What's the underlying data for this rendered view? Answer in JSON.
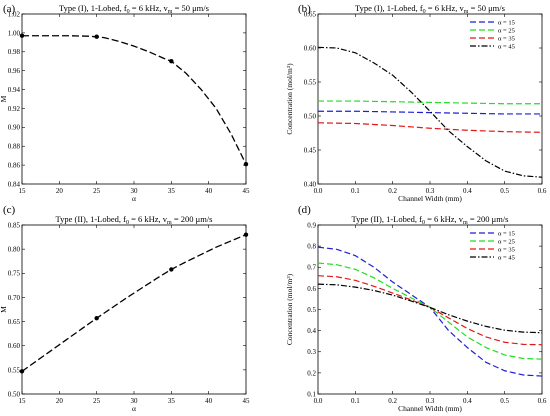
{
  "colors": {
    "blue": "#1f1fd6",
    "green": "#22dd22",
    "red": "#e01818",
    "black": "#000000"
  },
  "chart_data": [
    {
      "id": "a",
      "panel_label": "(a)",
      "type": "line",
      "title": "Type (I), 1-Lobed, f_0 = 6 kHz, v_m = 50 μm/s",
      "title_parts": {
        "main": "Type (I), 1-Lobed, f",
        "sub1": "0",
        "mid": " = 6 kHz, v",
        "sub2": "m",
        "end": " = 50 μm/s"
      },
      "xlabel": "α",
      "ylabel": "M",
      "xlim": [
        15,
        45
      ],
      "ylim": [
        0.84,
        1.02
      ],
      "xticks": [
        15,
        20,
        25,
        30,
        35,
        40,
        45
      ],
      "yticks": [
        "0.84",
        "0.86",
        "0.88",
        "0.90",
        "0.92",
        "0.94",
        "0.96",
        "0.98",
        "1.00",
        "1.02"
      ],
      "points": [
        {
          "x": 15,
          "y": 0.997
        },
        {
          "x": 25,
          "y": 0.996
        },
        {
          "x": 35,
          "y": 0.97
        },
        {
          "x": 45,
          "y": 0.861
        }
      ],
      "curve": [
        [
          15,
          0.997
        ],
        [
          18,
          0.997
        ],
        [
          21,
          0.997
        ],
        [
          24,
          0.9965
        ],
        [
          26,
          0.995
        ],
        [
          28,
          0.991
        ],
        [
          30,
          0.986
        ],
        [
          32,
          0.98
        ],
        [
          34,
          0.973
        ],
        [
          35,
          0.97
        ],
        [
          37,
          0.957
        ],
        [
          39,
          0.94
        ],
        [
          41,
          0.92
        ],
        [
          43,
          0.893
        ],
        [
          45,
          0.861
        ]
      ]
    },
    {
      "id": "b",
      "panel_label": "(b)",
      "type": "line",
      "title": "Type (I), 1-Lobed, f_0 = 6 kHz, v_m = 50 μm/s",
      "title_parts": {
        "main": "Type (I), 1-Lobed, f",
        "sub1": "0",
        "mid": " = 6 kHz, v",
        "sub2": "m",
        "end": " = 50 μm/s"
      },
      "xlabel": "Channel Width (mm)",
      "ylabel": "Concentration (mol/m³)",
      "xlim": [
        0,
        0.6
      ],
      "ylim": [
        0.4,
        0.65
      ],
      "xticks": [
        "0.0",
        "0.1",
        "0.2",
        "0.3",
        "0.4",
        "0.5",
        "0.6"
      ],
      "yticks": [
        "0.40",
        "0.45",
        "0.50",
        "0.55",
        "0.60",
        "0.65"
      ],
      "legend_position": "top-right",
      "series": [
        {
          "name": "α = 15",
          "color": "blue",
          "dash": "6,3",
          "x": [
            0,
            0.1,
            0.2,
            0.3,
            0.4,
            0.5,
            0.6
          ],
          "values": [
            0.507,
            0.507,
            0.506,
            0.505,
            0.504,
            0.503,
            0.503
          ]
        },
        {
          "name": "α = 25",
          "color": "green",
          "dash": "6,3",
          "x": [
            0,
            0.1,
            0.2,
            0.3,
            0.4,
            0.5,
            0.6
          ],
          "values": [
            0.522,
            0.522,
            0.521,
            0.52,
            0.519,
            0.518,
            0.518
          ]
        },
        {
          "name": "α = 35",
          "color": "red",
          "dash": "6,3",
          "x": [
            0,
            0.1,
            0.2,
            0.3,
            0.4,
            0.5,
            0.6
          ],
          "values": [
            0.49,
            0.489,
            0.486,
            0.482,
            0.479,
            0.477,
            0.476
          ]
        },
        {
          "name": "α = 45",
          "color": "black",
          "dash": "6,2,1.5,2",
          "x": [
            0,
            0.05,
            0.1,
            0.15,
            0.2,
            0.25,
            0.3,
            0.35,
            0.4,
            0.45,
            0.5,
            0.55,
            0.6
          ],
          "values": [
            0.601,
            0.6,
            0.593,
            0.578,
            0.56,
            0.535,
            0.507,
            0.478,
            0.455,
            0.434,
            0.419,
            0.412,
            0.41
          ]
        }
      ]
    },
    {
      "id": "c",
      "panel_label": "(c)",
      "type": "line",
      "title": "Type (II), 1-Lobed, f_0 = 6 kHz, v_m = 200 μm/s",
      "title_parts": {
        "main": "Type (II), 1-Lobed, f",
        "sub1": "0",
        "mid": " = 6 kHz, v",
        "sub2": "m",
        "end": " = 200 μm/s"
      },
      "xlabel": "α",
      "ylabel": "M",
      "xlim": [
        15,
        45
      ],
      "ylim": [
        0.5,
        0.85
      ],
      "xticks": [
        15,
        20,
        25,
        30,
        35,
        40,
        45
      ],
      "yticks": [
        "0.50",
        "0.55",
        "0.60",
        "0.65",
        "0.70",
        "0.75",
        "0.80",
        "0.85"
      ],
      "points": [
        {
          "x": 15,
          "y": 0.547
        },
        {
          "x": 25,
          "y": 0.657
        },
        {
          "x": 35,
          "y": 0.758
        },
        {
          "x": 45,
          "y": 0.83
        }
      ],
      "curve": [
        [
          15,
          0.547
        ],
        [
          17,
          0.569
        ],
        [
          19,
          0.591
        ],
        [
          21,
          0.613
        ],
        [
          23,
          0.635
        ],
        [
          25,
          0.657
        ],
        [
          27,
          0.678
        ],
        [
          29,
          0.699
        ],
        [
          31,
          0.719
        ],
        [
          33,
          0.739
        ],
        [
          35,
          0.758
        ],
        [
          37,
          0.774
        ],
        [
          39,
          0.789
        ],
        [
          41,
          0.804
        ],
        [
          43,
          0.817
        ],
        [
          45,
          0.83
        ]
      ]
    },
    {
      "id": "d",
      "panel_label": "(d)",
      "type": "line",
      "title": "Type (II), 1-Lobed, f_0 = 6 kHz, v_m = 200 μm/s",
      "title_parts": {
        "main": "Type (II), 1-Lobed, f",
        "sub1": "0",
        "mid": " = 6 kHz, v",
        "sub2": "m",
        "end": " = 200 μm/s"
      },
      "xlabel": "Channel Width (mm)",
      "ylabel": "Concentration (mol/m³)",
      "xlim": [
        0,
        0.6
      ],
      "ylim": [
        0.1,
        0.9
      ],
      "xticks": [
        "0.0",
        "0.1",
        "0.2",
        "0.3",
        "0.4",
        "0.5",
        "0.6"
      ],
      "yticks": [
        "0.1",
        "0.2",
        "0.3",
        "0.4",
        "0.5",
        "0.6",
        "0.7",
        "0.8",
        "0.9"
      ],
      "legend_position": "top-right",
      "series": [
        {
          "name": "α = 15",
          "color": "blue",
          "dash": "6,3",
          "x": [
            0,
            0.05,
            0.1,
            0.15,
            0.2,
            0.25,
            0.3,
            0.35,
            0.4,
            0.45,
            0.5,
            0.55,
            0.6
          ],
          "values": [
            0.795,
            0.785,
            0.755,
            0.7,
            0.63,
            0.57,
            0.51,
            0.4,
            0.32,
            0.25,
            0.21,
            0.19,
            0.185
          ]
        },
        {
          "name": "α = 25",
          "color": "green",
          "dash": "6,3",
          "x": [
            0,
            0.05,
            0.1,
            0.15,
            0.2,
            0.25,
            0.3,
            0.35,
            0.4,
            0.45,
            0.5,
            0.55,
            0.6
          ],
          "values": [
            0.72,
            0.712,
            0.69,
            0.65,
            0.6,
            0.555,
            0.51,
            0.44,
            0.37,
            0.32,
            0.285,
            0.268,
            0.265
          ]
        },
        {
          "name": "α = 35",
          "color": "red",
          "dash": "6,3",
          "x": [
            0,
            0.05,
            0.1,
            0.15,
            0.2,
            0.25,
            0.3,
            0.35,
            0.4,
            0.45,
            0.5,
            0.55,
            0.6
          ],
          "values": [
            0.66,
            0.655,
            0.638,
            0.61,
            0.578,
            0.545,
            0.51,
            0.46,
            0.41,
            0.37,
            0.345,
            0.335,
            0.333
          ]
        },
        {
          "name": "α = 45",
          "color": "black",
          "dash": "6,2,1.5,2",
          "x": [
            0,
            0.05,
            0.1,
            0.15,
            0.2,
            0.25,
            0.3,
            0.35,
            0.4,
            0.45,
            0.5,
            0.55,
            0.6
          ],
          "values": [
            0.62,
            0.617,
            0.606,
            0.59,
            0.568,
            0.54,
            0.51,
            0.475,
            0.445,
            0.42,
            0.402,
            0.393,
            0.39
          ]
        }
      ]
    }
  ]
}
